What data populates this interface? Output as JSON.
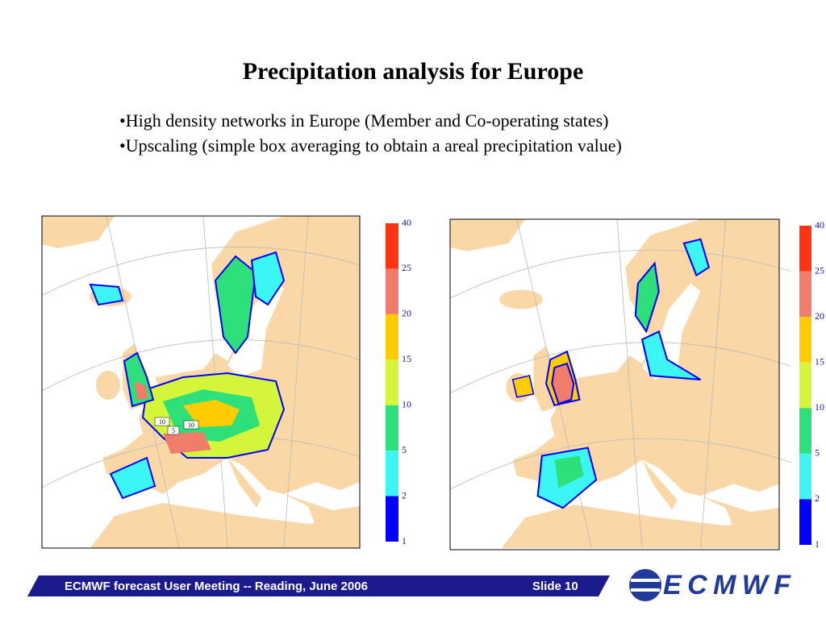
{
  "title": "Precipitation analysis for Europe",
  "bullets": [
    "•High density networks in Europe (Member and Co-operating states)",
    "•Upscaling (simple box averaging to obtain a areal precipitation value)"
  ],
  "maps": [
    {
      "annotations": [
        "10",
        "5",
        "10"
      ],
      "colorbar": {
        "labels": [
          "40",
          "25",
          "20",
          "15",
          "10",
          "5",
          "2",
          "1"
        ],
        "colors": [
          "#ff3311",
          "#f07d6a",
          "#ffcc00",
          "#d4f53a",
          "#2ee07a",
          "#3cf5f5",
          "#0000ff"
        ]
      }
    },
    {
      "colorbar": {
        "labels": [
          "40",
          "25",
          "20",
          "15",
          "10",
          "5",
          "2",
          "1"
        ],
        "colors": [
          "#ff3311",
          "#f07d6a",
          "#ffcc00",
          "#d4f53a",
          "#2ee07a",
          "#3cf5f5",
          "#0000ff"
        ]
      }
    }
  ],
  "footer": {
    "text": "ECMWF forecast User Meeting -- Reading, June 2006",
    "slide": "Slide 10",
    "logo": "ECMWF"
  }
}
